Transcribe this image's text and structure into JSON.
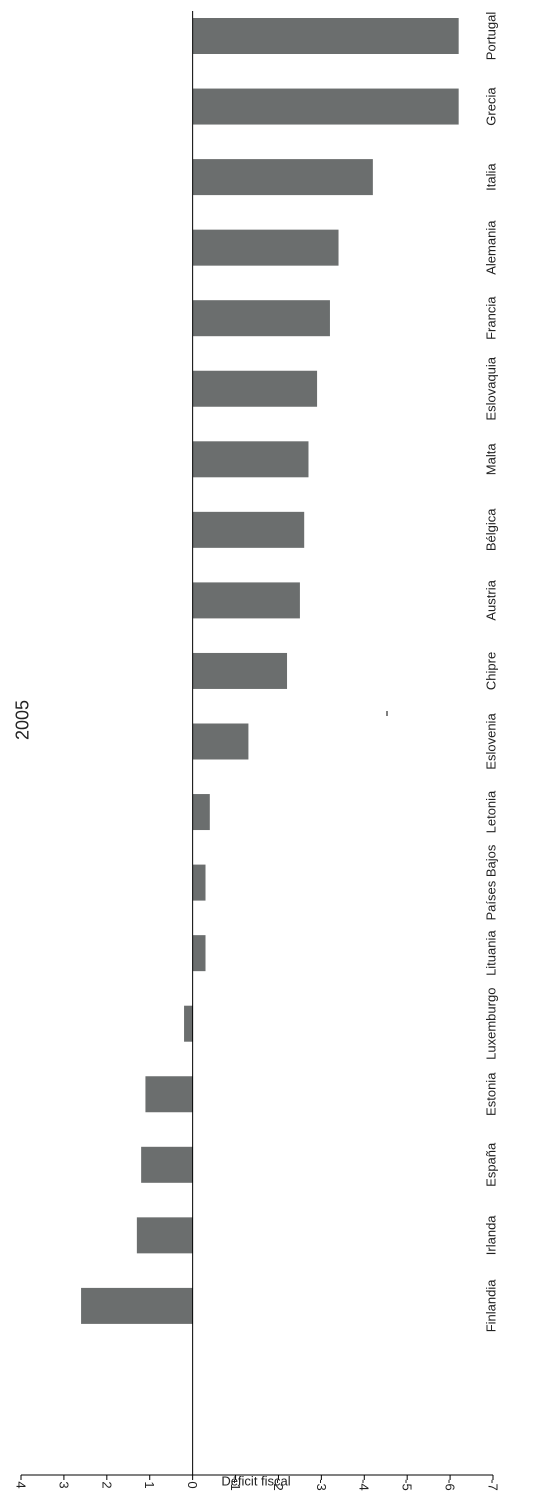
{
  "chart_data": {
    "type": "bar",
    "orientation": "horizontal",
    "title": "2005",
    "xlabel": "Déficit fiscal",
    "categories": [
      "Portugal",
      "Grecia",
      "Italia",
      "Alemania",
      "Francia",
      "Eslovaquia",
      "Malta",
      "Bélgica",
      "Austria",
      "Chipre",
      "Eslovenia",
      "Letonia",
      "Países Bajos",
      "Lituania",
      "Luxemburgo",
      "Estonia",
      "España",
      "Irlanda",
      "Finlandia"
    ],
    "values": [
      -6.2,
      -6.2,
      -4.2,
      -3.4,
      -3.2,
      -2.9,
      -2.7,
      -2.6,
      -2.5,
      -2.2,
      -1.3,
      -0.4,
      -0.3,
      -0.3,
      0.2,
      1.1,
      1.2,
      1.3,
      2.6
    ],
    "xlim": [
      4,
      -7
    ],
    "ticks": [
      4,
      3,
      2,
      1,
      0,
      -1,
      -2,
      -3,
      -4,
      -5,
      -6,
      -7
    ],
    "tick_labels": [
      "4",
      "3",
      "2",
      "1",
      "0",
      "-1",
      "-2",
      "-3",
      "-4",
      "-5",
      "-6",
      "-7"
    ],
    "bar_color": "#6b6e6e",
    "grid": false,
    "legend": "none"
  }
}
